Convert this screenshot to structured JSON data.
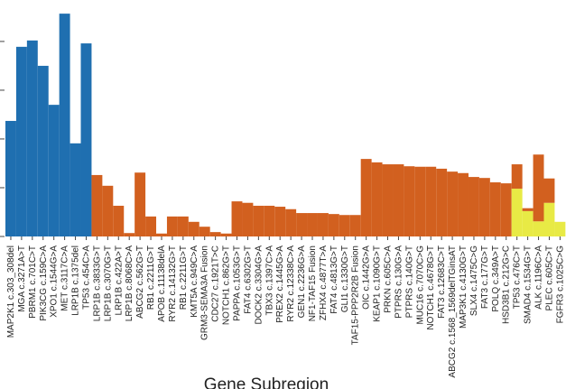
{
  "chart_data": {
    "type": "stacked_bar",
    "x_label": "Gene Subregion",
    "categories": [
      "MAP2K1 c.303_308del",
      "MGA c.3271A>T",
      "PBRM1 c.701C>T",
      "PIK3CG c.159C>A",
      "XPO1 c.1544G>A",
      "MET c.3117C>A",
      "LRP1B c.1375del",
      "TP53 c.454C>A",
      "LRP1B c.3833G>T",
      "LRP1B c.3070G>T",
      "LRP1B c.422A>T",
      "LRP1B c.8068C>A",
      "ABCG2 c.562G>T",
      "RB1 c.2211G>T",
      "APOB c.11138delA",
      "RYR2 c.14132G>T",
      "RB1 c.2211G>T",
      "KMT5A c.949C>A",
      "GRM3-SEMA3A Fusion",
      "CDC27 c.1921T>C",
      "NOTCH1 c.862G>T",
      "PAPPA c.1053G>T",
      "FAT4 c.6302G>T",
      "DOCK2 c.3304G>A",
      "TBX3 c.1397C>A",
      "PREX2 c.1445G>A",
      "RYR2 c.12338C>A",
      "GEN1 c.2236G>A",
      "NF1-TAF15 Fusion",
      "ZFHX4 c.4877T>A",
      "FAT4 c.4813G>T",
      "GLI1 c.1330G>T",
      "TAF15-PPP2R2B Fusion",
      "OIC c.1442G>A",
      "KEAP1 c.1090G>T",
      "PRKN c.605C>A",
      "PTPRS c.130G>A",
      "PTPRS c.140G>T",
      "MUC16 c.7070C>G",
      "NOTCH1 c.4678G>T",
      "FAT3 c.12683C>T",
      "ABCG2 c.1568_1569delTGinsAT",
      "MAP3K1 c.4130G>T",
      "SLX4 c.1475C>G",
      "FAT3 c.177G>T",
      "POLQ c.349A>T",
      "HSD3B1 c.212G>C",
      "TP53 c.476C>T",
      "SMAD4 c.1534G>T",
      "ALK c.1196C>A",
      "PLEC c.605C>T",
      "FGFR3 c.1025C>G"
    ],
    "series": [
      {
        "color": "#1f6fb0",
        "values": [
          2.37,
          3.89,
          4.02,
          3.5,
          2.7,
          4.57,
          1.91,
          3.96,
          null,
          null,
          null,
          null,
          null,
          null,
          null,
          null,
          null,
          null,
          null,
          null,
          null,
          null,
          null,
          null,
          null,
          null,
          null,
          null,
          null,
          null,
          null,
          null,
          null,
          null,
          null,
          null,
          null,
          null,
          null,
          null,
          null,
          null,
          null,
          null,
          null,
          null,
          null,
          null,
          null,
          null,
          null,
          null
        ]
      },
      {
        "color": "#e8ea45",
        "values": [
          null,
          null,
          null,
          null,
          null,
          null,
          null,
          null,
          null,
          null,
          null,
          null,
          null,
          null,
          null,
          null,
          null,
          null,
          null,
          null,
          null,
          null,
          null,
          null,
          null,
          null,
          null,
          null,
          null,
          null,
          null,
          null,
          null,
          null,
          null,
          null,
          null,
          null,
          null,
          null,
          null,
          null,
          null,
          null,
          null,
          null,
          null,
          0.98,
          0.52,
          0.31,
          0.69,
          0.3
        ]
      },
      {
        "color": "#d2601f",
        "values": [
          null,
          null,
          null,
          null,
          null,
          null,
          null,
          null,
          1.26,
          1.04,
          0.63,
          0.07,
          1.31,
          0.41,
          0.06,
          0.41,
          0.41,
          0.3,
          0.2,
          0.09,
          0.06,
          0.72,
          0.69,
          0.63,
          0.63,
          0.61,
          0.56,
          0.48,
          0.48,
          0.48,
          0.46,
          0.44,
          0.44,
          1.59,
          1.52,
          1.48,
          1.48,
          1.44,
          1.43,
          1.43,
          1.39,
          1.33,
          1.3,
          1.22,
          1.2,
          1.11,
          1.09,
          0.5,
          0.06,
          1.37,
          0.5,
          null
        ]
      }
    ],
    "ylim": [
      0,
      4.85
    ],
    "yticks": [
      0,
      1,
      2,
      3,
      4
    ]
  }
}
